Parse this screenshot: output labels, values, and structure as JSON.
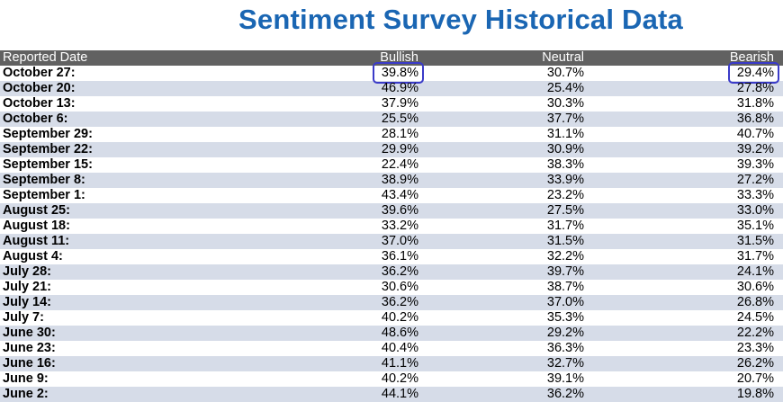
{
  "title": "Sentiment Survey Historical Data",
  "columns": {
    "date": "Reported Date",
    "bullish": "Bullish",
    "neutral": "Neutral",
    "bearish": "Bearish"
  },
  "rows": [
    {
      "date": "October 27:",
      "bullish": "39.8%",
      "neutral": "30.7%",
      "bearish": "29.4%"
    },
    {
      "date": "October 20:",
      "bullish": "46.9%",
      "neutral": "25.4%",
      "bearish": "27.8%"
    },
    {
      "date": "October 13:",
      "bullish": "37.9%",
      "neutral": "30.3%",
      "bearish": "31.8%"
    },
    {
      "date": "October 6:",
      "bullish": "25.5%",
      "neutral": "37.7%",
      "bearish": "36.8%"
    },
    {
      "date": "September 29:",
      "bullish": "28.1%",
      "neutral": "31.1%",
      "bearish": "40.7%"
    },
    {
      "date": "September 22:",
      "bullish": "29.9%",
      "neutral": "30.9%",
      "bearish": "39.2%"
    },
    {
      "date": "September 15:",
      "bullish": "22.4%",
      "neutral": "38.3%",
      "bearish": "39.3%"
    },
    {
      "date": "September 8:",
      "bullish": "38.9%",
      "neutral": "33.9%",
      "bearish": "27.2%"
    },
    {
      "date": "September 1:",
      "bullish": "43.4%",
      "neutral": "23.2%",
      "bearish": "33.3%"
    },
    {
      "date": "August 25:",
      "bullish": "39.6%",
      "neutral": "27.5%",
      "bearish": "33.0%"
    },
    {
      "date": "August 18:",
      "bullish": "33.2%",
      "neutral": "31.7%",
      "bearish": "35.1%"
    },
    {
      "date": "August 11:",
      "bullish": "37.0%",
      "neutral": "31.5%",
      "bearish": "31.5%"
    },
    {
      "date": "August 4:",
      "bullish": "36.1%",
      "neutral": "32.2%",
      "bearish": "31.7%"
    },
    {
      "date": "July 28:",
      "bullish": "36.2%",
      "neutral": "39.7%",
      "bearish": "24.1%"
    },
    {
      "date": "July 21:",
      "bullish": "30.6%",
      "neutral": "38.7%",
      "bearish": "30.6%"
    },
    {
      "date": "July 14:",
      "bullish": "36.2%",
      "neutral": "37.0%",
      "bearish": "26.8%"
    },
    {
      "date": "July 7:",
      "bullish": "40.2%",
      "neutral": "35.3%",
      "bearish": "24.5%"
    },
    {
      "date": "June 30:",
      "bullish": "48.6%",
      "neutral": "29.2%",
      "bearish": "22.2%"
    },
    {
      "date": "June 23:",
      "bullish": "40.4%",
      "neutral": "36.3%",
      "bearish": "23.3%"
    },
    {
      "date": "June 16:",
      "bullish": "41.1%",
      "neutral": "32.7%",
      "bearish": "26.2%"
    },
    {
      "date": "June 9:",
      "bullish": "40.2%",
      "neutral": "39.1%",
      "bearish": "20.7%"
    },
    {
      "date": "June 2:",
      "bullish": "44.1%",
      "neutral": "36.2%",
      "bearish": "19.8%"
    }
  ],
  "highlight_color": "#3b3bc8",
  "highlighted_cells": [
    "rows.0.bullish",
    "rows.0.bearish"
  ]
}
